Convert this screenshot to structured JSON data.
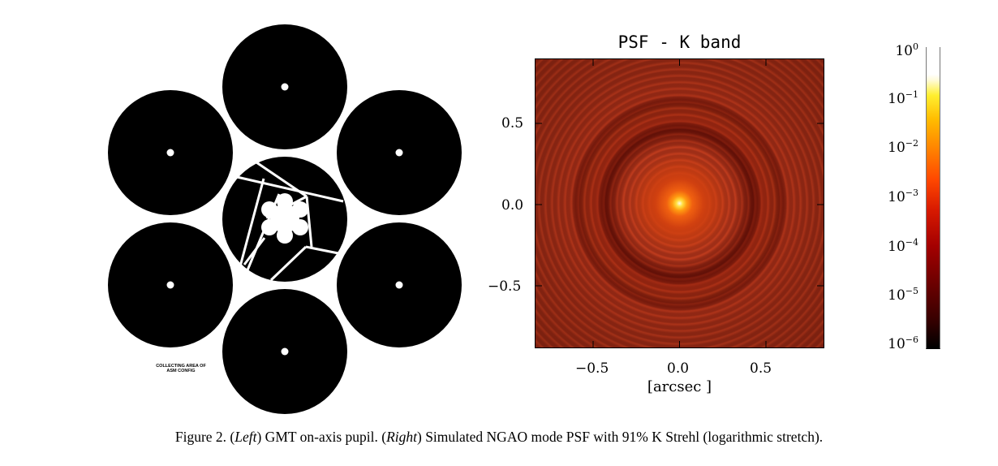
{
  "left_panel": {
    "label_line1": "COLLECTING AREA OF",
    "label_line2": "ASM CONFIG"
  },
  "right_panel": {
    "title": "PSF - K band",
    "x_ticks": [
      "−0.5",
      "0.0",
      "0.5"
    ],
    "y_ticks": [
      "0.5",
      "0.0",
      "−0.5"
    ],
    "xlabel": "[arcsec ]",
    "colorbar_ticks": [
      {
        "base": "10",
        "exp": "0"
      },
      {
        "base": "10",
        "exp": "−1"
      },
      {
        "base": "10",
        "exp": "−2"
      },
      {
        "base": "10",
        "exp": "−3"
      },
      {
        "base": "10",
        "exp": "−4"
      },
      {
        "base": "10",
        "exp": "−5"
      },
      {
        "base": "10",
        "exp": "−6"
      }
    ],
    "colormap": "red-temperature"
  },
  "caption": {
    "prefix": "Figure 2.  (",
    "left_word": "Left",
    "middle": ") GMT on-axis pupil. (",
    "right_word": "Right",
    "suffix": ") Simulated NGAO mode PSF with 91% K Strehl (logarithmic stretch)."
  }
}
